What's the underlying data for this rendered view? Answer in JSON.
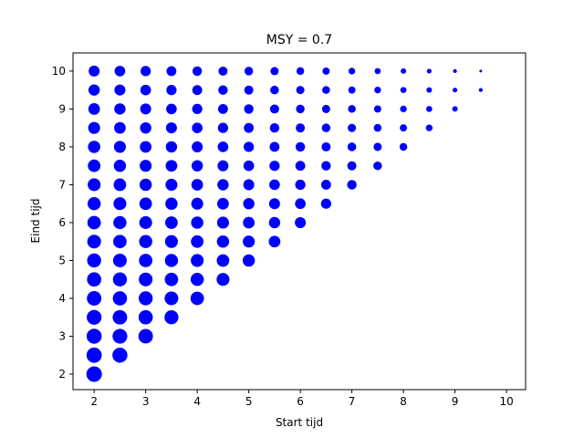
{
  "chart_data": {
    "type": "scatter",
    "title": "MSY = 0.7",
    "x_label": "Start tijd",
    "y_label": "Eind tijd",
    "color": "#0000ff",
    "x": [
      2,
      2,
      2,
      2,
      2,
      2,
      2,
      2,
      2,
      2,
      2,
      2,
      2,
      2,
      2,
      2,
      2,
      2.5,
      2.5,
      2.5,
      2.5,
      2.5,
      2.5,
      2.5,
      2.5,
      2.5,
      2.5,
      2.5,
      2.5,
      2.5,
      2.5,
      2.5,
      2.5,
      3,
      3,
      3,
      3,
      3,
      3,
      3,
      3,
      3,
      3,
      3,
      3,
      3,
      3,
      3,
      3.5,
      3.5,
      3.5,
      3.5,
      3.5,
      3.5,
      3.5,
      3.5,
      3.5,
      3.5,
      3.5,
      3.5,
      3.5,
      3.5,
      4,
      4,
      4,
      4,
      4,
      4,
      4,
      4,
      4,
      4,
      4,
      4,
      4,
      4.5,
      4.5,
      4.5,
      4.5,
      4.5,
      4.5,
      4.5,
      4.5,
      4.5,
      4.5,
      4.5,
      4.5,
      5,
      5,
      5,
      5,
      5,
      5,
      5,
      5,
      5,
      5,
      5,
      5.5,
      5.5,
      5.5,
      5.5,
      5.5,
      5.5,
      5.5,
      5.5,
      5.5,
      5.5,
      6,
      6,
      6,
      6,
      6,
      6,
      6,
      6,
      6,
      6.5,
      6.5,
      6.5,
      6.5,
      6.5,
      6.5,
      6.5,
      6.5,
      7,
      7,
      7,
      7,
      7,
      7,
      7,
      7.5,
      7.5,
      7.5,
      7.5,
      7.5,
      7.5,
      8,
      8,
      8,
      8,
      8,
      8.5,
      8.5,
      8.5,
      8.5,
      9,
      9,
      9,
      9.5,
      9.5
    ],
    "values": [
      2,
      2.5,
      3,
      3.5,
      4,
      4.5,
      5,
      5.5,
      6,
      6.5,
      7,
      7.5,
      8,
      8.5,
      9,
      9.5,
      10,
      2.5,
      3,
      3.5,
      4,
      4.5,
      5,
      5.5,
      6,
      6.5,
      7,
      7.5,
      8,
      8.5,
      9,
      9.5,
      10,
      3,
      3.5,
      4,
      4.5,
      5,
      5.5,
      6,
      6.5,
      7,
      7.5,
      8,
      8.5,
      9,
      9.5,
      10,
      3.5,
      4,
      4.5,
      5,
      5.5,
      6,
      6.5,
      7,
      7.5,
      8,
      8.5,
      9,
      9.5,
      10,
      4,
      4.5,
      5,
      5.5,
      6,
      6.5,
      7,
      7.5,
      8,
      8.5,
      9,
      9.5,
      10,
      4.5,
      5,
      5.5,
      6,
      6.5,
      7,
      7.5,
      8,
      8.5,
      9,
      9.5,
      10,
      5,
      5.5,
      6,
      6.5,
      7,
      7.5,
      8,
      8.5,
      9,
      9.5,
      10,
      5.5,
      6,
      6.5,
      7,
      7.5,
      8,
      8.5,
      9,
      9.5,
      10,
      6,
      6.5,
      7,
      7.5,
      8,
      8.5,
      9,
      9.5,
      10,
      6.5,
      7,
      7.5,
      8,
      8.5,
      9,
      9.5,
      10,
      7,
      7.5,
      8,
      8.5,
      9,
      9.5,
      10,
      7.5,
      8,
      8.5,
      9,
      9.5,
      10,
      8,
      8.5,
      9,
      9.5,
      10,
      8.5,
      9,
      9.5,
      10,
      9,
      9.5,
      10,
      9.5,
      10
    ],
    "sizes": [
      16,
      15.5,
      15,
      14.5,
      14,
      13.5,
      13,
      12.5,
      12,
      11.5,
      11,
      10.5,
      10,
      9.5,
      9,
      8.5,
      8,
      15,
      14.5,
      14,
      13.5,
      13,
      12.5,
      12,
      11.5,
      11,
      10.5,
      10,
      9.5,
      9,
      8.5,
      8,
      7.5,
      14,
      13.5,
      13,
      12.5,
      12,
      11.5,
      11,
      10.5,
      10,
      9.5,
      9,
      8.5,
      8,
      7.5,
      7,
      13,
      12.5,
      12,
      11.5,
      11,
      10.5,
      10,
      9.5,
      9,
      8.5,
      8,
      7.5,
      7,
      6.5,
      12,
      11.5,
      11,
      10.5,
      10,
      9.5,
      9,
      8.5,
      8,
      7.5,
      7,
      6.5,
      6,
      11,
      10.5,
      10,
      9.5,
      9,
      8.5,
      8,
      7.5,
      7,
      6.5,
      6,
      5.5,
      10,
      9.5,
      9,
      8.5,
      8,
      7.5,
      7,
      6.5,
      6,
      5.5,
      5,
      9,
      8.5,
      8,
      7.5,
      7,
      6.5,
      6,
      5.5,
      5,
      4.5,
      8,
      7.5,
      7,
      6.5,
      6,
      5.5,
      5,
      4.5,
      4,
      7,
      6.5,
      6,
      5.5,
      5,
      4.5,
      4,
      3.5,
      6,
      5.5,
      5,
      4.5,
      4,
      3.5,
      3,
      5,
      4.5,
      4,
      3.5,
      3,
      2.5,
      4,
      3.5,
      3,
      2.5,
      2,
      3,
      2.5,
      2,
      1.5,
      2,
      1.5,
      1,
      1,
      0.5
    ],
    "xlim": [
      1.59,
      10.37
    ],
    "ylim": [
      1.59,
      10.48
    ],
    "xticks": [
      2,
      3,
      4,
      5,
      6,
      7,
      8,
      9,
      10
    ],
    "yticks": [
      2,
      3,
      4,
      5,
      6,
      7,
      8,
      9,
      10
    ]
  }
}
